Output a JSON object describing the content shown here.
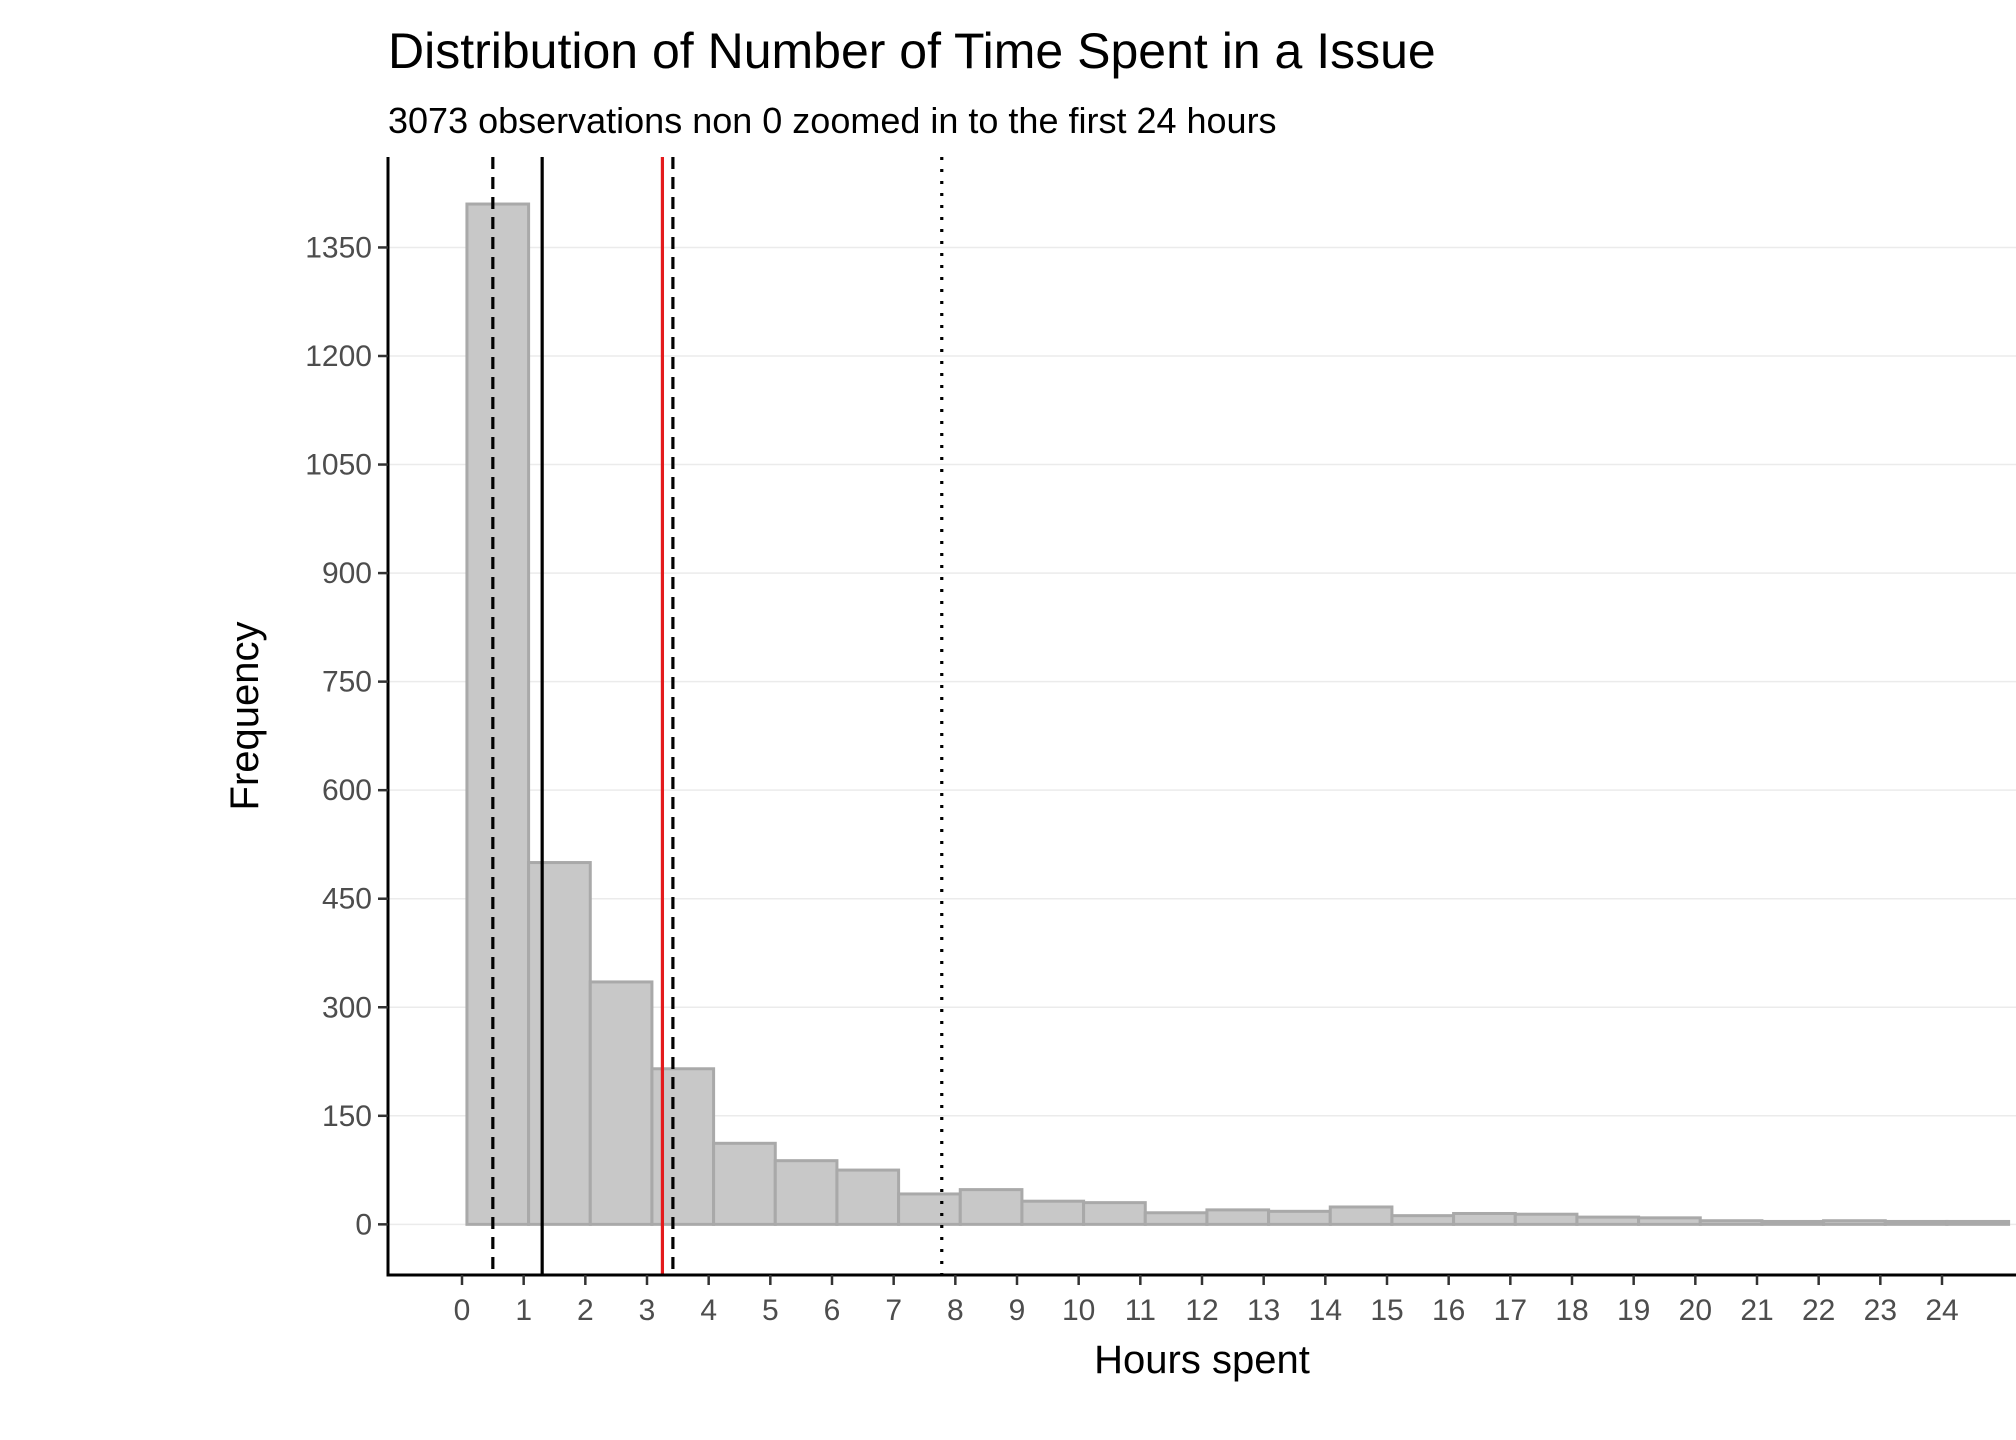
{
  "chart_data": {
    "type": "bar",
    "title": "Distribution of Number of Time Spent in a Issue",
    "subtitle": "3073 observations non 0 zoomed in to the first 24 hours",
    "xlabel": "Hours spent",
    "ylabel": "Frequency",
    "xlim": [
      -1.2,
      25.2
    ],
    "ylim": [
      -70,
      1475
    ],
    "x_ticks": [
      0,
      1,
      2,
      3,
      4,
      5,
      6,
      7,
      8,
      9,
      10,
      11,
      12,
      13,
      14,
      15,
      16,
      17,
      18,
      19,
      20,
      21,
      22,
      23,
      24
    ],
    "y_ticks": [
      0,
      150,
      300,
      450,
      600,
      750,
      900,
      1050,
      1200,
      1350
    ],
    "bin_width": 1,
    "bin_starts": [
      0.08,
      1.08,
      2.08,
      3.08,
      4.08,
      5.08,
      6.08,
      7.08,
      8.08,
      9.08,
      10.08,
      11.08,
      12.08,
      13.08,
      14.08,
      15.08,
      16.08,
      17.08,
      18.08,
      19.08,
      20.08,
      21.08,
      22.08,
      23.08,
      24.08
    ],
    "values": [
      1410,
      500,
      335,
      215,
      112,
      88,
      75,
      42,
      48,
      32,
      30,
      16,
      20,
      18,
      24,
      12,
      15,
      14,
      10,
      9,
      5,
      4,
      5,
      4,
      4
    ],
    "reference_lines": [
      {
        "x": 0.5,
        "style": "dashed",
        "color": "#000000"
      },
      {
        "x": 1.3,
        "style": "solid",
        "color": "#000000"
      },
      {
        "x": 3.25,
        "style": "solid",
        "color": "#e41a1c"
      },
      {
        "x": 3.42,
        "style": "dashed",
        "color": "#000000"
      },
      {
        "x": 7.78,
        "style": "dotted",
        "color": "#000000"
      }
    ],
    "grid": "horizontal-major",
    "colors": {
      "bar_fill": "#c8c8c8",
      "bar_stroke": "#a9a9a9",
      "grid": "#ebebeb",
      "axis": "#000000",
      "highlight": "#e41a1c"
    }
  }
}
